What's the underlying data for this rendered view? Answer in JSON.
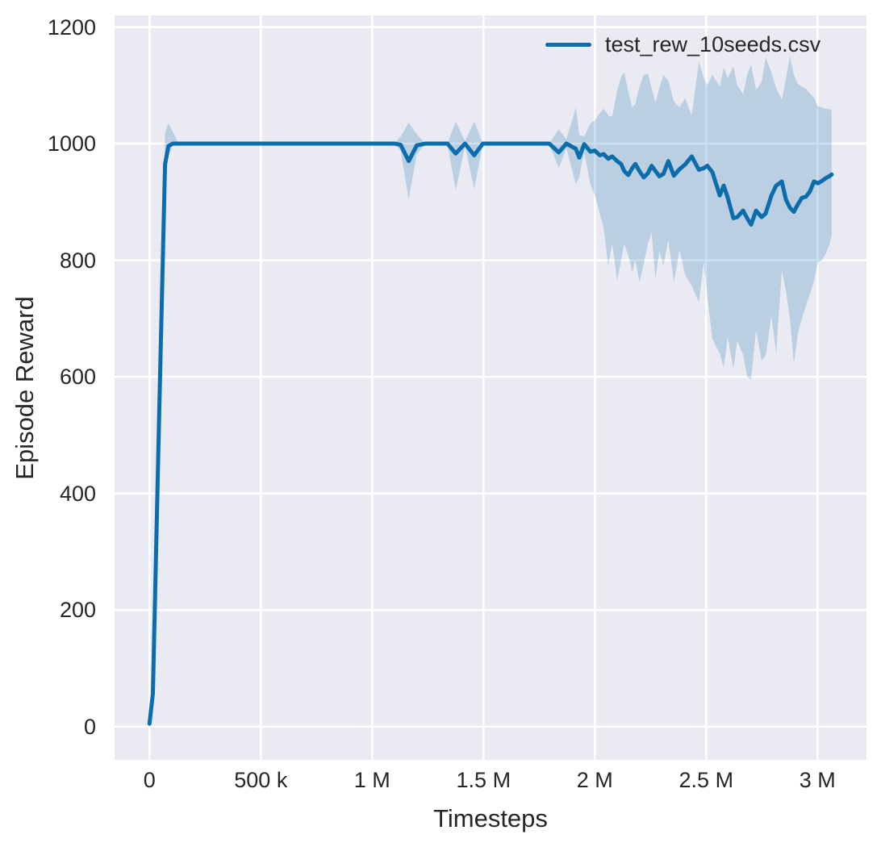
{
  "chart_data": {
    "type": "line",
    "title": "",
    "xlabel": "Timesteps",
    "ylabel": "Episode Reward",
    "grid": true,
    "plot_background": "#eaeaf2",
    "grid_color": "#ffffff",
    "text_color": "#262626",
    "xlim": [
      -157000,
      3220000
    ],
    "ylim": [
      -57,
      1220
    ],
    "xticks": [
      {
        "value": 0,
        "label": "0"
      },
      {
        "value": 500000,
        "label": "500 k"
      },
      {
        "value": 1000000,
        "label": "1 M"
      },
      {
        "value": 1500000,
        "label": "1.5 M"
      },
      {
        "value": 2000000,
        "label": "2 M"
      },
      {
        "value": 2500000,
        "label": "2.5 M"
      },
      {
        "value": 3000000,
        "label": "3 M"
      }
    ],
    "yticks": [
      {
        "value": 0,
        "label": "0"
      },
      {
        "value": 200,
        "label": "200"
      },
      {
        "value": 400,
        "label": "400"
      },
      {
        "value": 600,
        "label": "600"
      },
      {
        "value": 800,
        "label": "800"
      },
      {
        "value": 1000,
        "label": "1000"
      },
      {
        "value": 1200,
        "label": "1200"
      }
    ],
    "legend": {
      "position": "upper right",
      "entries": [
        {
          "label": "test_rew_10seeds.csv",
          "color": "#0b6dab"
        }
      ]
    },
    "series": [
      {
        "name": "test_rew_10seeds.csv",
        "color": "#0b6dab",
        "line_width": 5,
        "band_color": "#0b6dab",
        "band_opacity": 0.21,
        "columns": [
          "timestep",
          "mean_reward",
          "band_lower",
          "band_upper"
        ],
        "points": [
          [
            0,
            5,
            2,
            8
          ],
          [
            15000,
            57,
            48,
            66
          ],
          [
            45000,
            560,
            535,
            600
          ],
          [
            70000,
            965,
            935,
            1018
          ],
          [
            85000,
            996,
            978,
            1035
          ],
          [
            105000,
            1000,
            998,
            1020
          ],
          [
            130000,
            1000,
            1000,
            1000
          ],
          [
            1100000,
            1000,
            1000,
            1000
          ],
          [
            1128000,
            998,
            988,
            1012
          ],
          [
            1164000,
            970,
            905,
            1036
          ],
          [
            1200000,
            997,
            982,
            1016
          ],
          [
            1240000,
            1000,
            1000,
            1000
          ],
          [
            1338000,
            1000,
            1000,
            1000
          ],
          [
            1375000,
            983,
            920,
            1038
          ],
          [
            1417000,
            1000,
            996,
            1004
          ],
          [
            1458000,
            980,
            922,
            1038
          ],
          [
            1497000,
            1000,
            1000,
            1000
          ],
          [
            1795000,
            1000,
            1000,
            1000
          ],
          [
            1838000,
            985,
            958,
            1025
          ],
          [
            1872000,
            1000,
            993,
            1007
          ],
          [
            1915000,
            991,
            930,
            1062
          ],
          [
            1930000,
            976,
            942,
            1015
          ],
          [
            1952000,
            999,
            985,
            1012
          ],
          [
            1980000,
            986,
            930,
            1035
          ],
          [
            2000000,
            988,
            912,
            1040
          ],
          [
            2022000,
            980,
            880,
            1052
          ],
          [
            2040000,
            982,
            855,
            1060
          ],
          [
            2060000,
            974,
            790,
            1048
          ],
          [
            2078000,
            978,
            828,
            1046
          ],
          [
            2100000,
            970,
            765,
            1090
          ],
          [
            2118000,
            965,
            800,
            1115
          ],
          [
            2132000,
            953,
            828,
            1122
          ],
          [
            2150000,
            946,
            808,
            1090
          ],
          [
            2168000,
            958,
            780,
            1062
          ],
          [
            2182000,
            965,
            800,
            1068
          ],
          [
            2200000,
            953,
            762,
            1098
          ],
          [
            2220000,
            942,
            795,
            1118
          ],
          [
            2238000,
            949,
            828,
            1120
          ],
          [
            2255000,
            962,
            848,
            1095
          ],
          [
            2272000,
            953,
            768,
            1070
          ],
          [
            2290000,
            944,
            815,
            1095
          ],
          [
            2308000,
            948,
            790,
            1118
          ],
          [
            2330000,
            970,
            835,
            1108
          ],
          [
            2355000,
            945,
            762,
            1072
          ],
          [
            2380000,
            956,
            818,
            1062
          ],
          [
            2405000,
            964,
            775,
            1078
          ],
          [
            2435000,
            978,
            756,
            1048
          ],
          [
            2467000,
            955,
            728,
            1140
          ],
          [
            2490000,
            958,
            798,
            1112
          ],
          [
            2505000,
            962,
            738,
            1100
          ],
          [
            2528000,
            951,
            665,
            1118
          ],
          [
            2561000,
            911,
            640,
            1098
          ],
          [
            2579000,
            928,
            616,
            1130
          ],
          [
            2597000,
            907,
            668,
            1112
          ],
          [
            2622000,
            872,
            614,
            1133
          ],
          [
            2640000,
            874,
            662,
            1100
          ],
          [
            2666000,
            885,
            638,
            1085
          ],
          [
            2684000,
            872,
            600,
            1118
          ],
          [
            2702000,
            861,
            596,
            1135
          ],
          [
            2724000,
            885,
            680,
            1092
          ],
          [
            2749000,
            874,
            628,
            1105
          ],
          [
            2767000,
            880,
            636,
            1148
          ],
          [
            2793000,
            911,
            705,
            1122
          ],
          [
            2814000,
            928,
            640,
            1095
          ],
          [
            2840000,
            935,
            782,
            1075
          ],
          [
            2858000,
            904,
            748,
            1110
          ],
          [
            2876000,
            890,
            700,
            1150
          ],
          [
            2894000,
            883,
            623,
            1118
          ],
          [
            2912000,
            896,
            674,
            1102
          ],
          [
            2930000,
            907,
            700,
            1098
          ],
          [
            2948000,
            909,
            722,
            1094
          ],
          [
            2966000,
            918,
            742,
            1086
          ],
          [
            2984000,
            935,
            764,
            1079
          ],
          [
            3002000,
            932,
            796,
            1064
          ],
          [
            3020000,
            936,
            800,
            1062
          ],
          [
            3038000,
            941,
            812,
            1060
          ],
          [
            3053000,
            944,
            826,
            1059
          ],
          [
            3064000,
            947,
            842,
            1057
          ]
        ]
      }
    ]
  }
}
